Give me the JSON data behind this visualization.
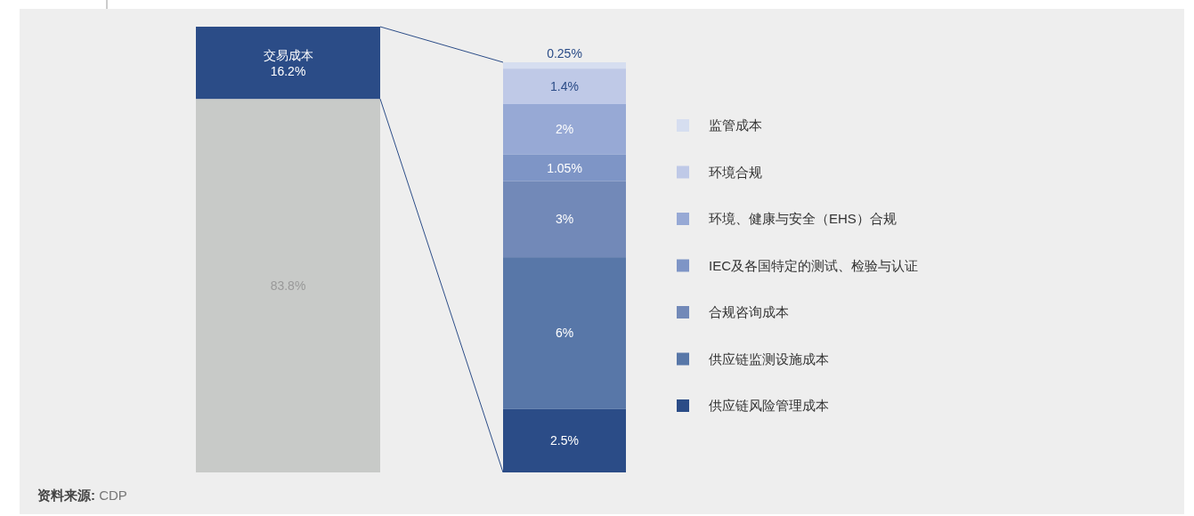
{
  "chart_data": [
    {
      "type": "bar",
      "stacked": true,
      "categories": [
        null
      ],
      "legend": false,
      "series": [
        {
          "color": "#c8cac8",
          "values": [
            83.8
          ],
          "value_labels": [
            "83.8%"
          ]
        },
        {
          "name": "交易成本",
          "color": "#2b4c87",
          "values": [
            16.2
          ],
          "value_labels": [
            "16.2%"
          ]
        }
      ],
      "annotations": [
        "资料来源: CDP"
      ]
    },
    {
      "type": "bar",
      "stacked": true,
      "categories": [
        null
      ],
      "legend": "right",
      "series": [
        {
          "name": "供应链风险管理成本",
          "color": "#2b4c87",
          "values": [
            2.5
          ],
          "value_labels": [
            "2.5%"
          ]
        },
        {
          "name": "供应链监测设施成本",
          "color": "#5877a8",
          "values": [
            6
          ],
          "value_labels": [
            "6%"
          ]
        },
        {
          "name": "合规咨询成本",
          "color": "#7289b8",
          "values": [
            3
          ],
          "value_labels": [
            "3%"
          ]
        },
        {
          "name": "IEC及各国特定的测试、检验与认证",
          "color": "#7e95c6",
          "values": [
            1.05
          ],
          "value_labels": [
            "1.05%"
          ]
        },
        {
          "name": "环境、健康与安全（EHS）合规",
          "color": "#97a9d5",
          "values": [
            2
          ],
          "value_labels": [
            "2%"
          ]
        },
        {
          "name": "环境合规",
          "color": "#bfc9e7",
          "values": [
            1.4
          ],
          "value_labels": [
            "1.4%"
          ]
        },
        {
          "name": "监管成本",
          "color": "#d6def0",
          "values": [
            0.25
          ],
          "value_labels": [
            "0.25%"
          ]
        }
      ]
    }
  ]
}
